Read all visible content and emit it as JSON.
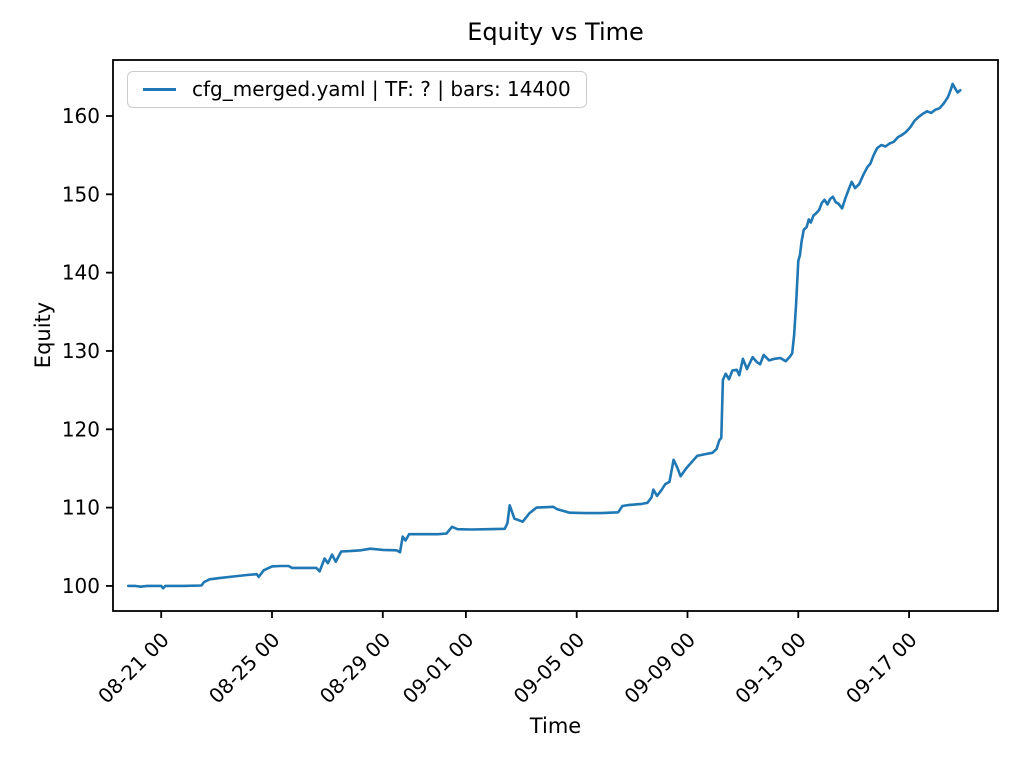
{
  "figure": {
    "background": "#ffffff"
  },
  "chart_data": {
    "type": "line",
    "title": "Equity vs Time",
    "xlabel": "Time",
    "ylabel": "Equity",
    "legend": [
      "cfg_merged.yaml | TF: ? | bars: 14400"
    ],
    "legend_position": "upper left",
    "line_color": "#1f77b4",
    "grid": false,
    "x_unit": "days since 08-21 00:00",
    "xlim": [
      -1.74,
      30.21
    ],
    "ylim": [
      96.8,
      167.15
    ],
    "y_ticks": [
      100,
      110,
      120,
      130,
      140,
      150,
      160
    ],
    "x_ticks": [
      {
        "day": 0,
        "label": "08-21 00"
      },
      {
        "day": 4,
        "label": "08-25 00"
      },
      {
        "day": 8,
        "label": "08-29 00"
      },
      {
        "day": 11,
        "label": "09-01 00"
      },
      {
        "day": 15,
        "label": "09-05 00"
      },
      {
        "day": 19,
        "label": "09-09 00"
      },
      {
        "day": 23,
        "label": "09-13 00"
      },
      {
        "day": 27,
        "label": "09-17 00"
      }
    ],
    "series": [
      {
        "name": "cfg_merged.yaml | TF: ? | bars: 14400",
        "points": [
          [
            -1.19,
            100.0
          ],
          [
            -0.95,
            100.0
          ],
          [
            -0.75,
            99.9
          ],
          [
            -0.5,
            100.0
          ],
          [
            0.0,
            100.0
          ],
          [
            0.07,
            99.7
          ],
          [
            0.15,
            100.0
          ],
          [
            0.8,
            100.0
          ],
          [
            1.45,
            100.05
          ],
          [
            1.55,
            100.5
          ],
          [
            1.75,
            100.85
          ],
          [
            2.1,
            101.0
          ],
          [
            2.6,
            101.2
          ],
          [
            3.1,
            101.4
          ],
          [
            3.45,
            101.5
          ],
          [
            3.52,
            101.15
          ],
          [
            3.7,
            102.0
          ],
          [
            4.0,
            102.5
          ],
          [
            4.3,
            102.55
          ],
          [
            4.6,
            102.55
          ],
          [
            4.72,
            102.3
          ],
          [
            5.2,
            102.3
          ],
          [
            5.6,
            102.3
          ],
          [
            5.72,
            101.85
          ],
          [
            5.9,
            103.5
          ],
          [
            6.02,
            102.9
          ],
          [
            6.17,
            104.0
          ],
          [
            6.3,
            103.1
          ],
          [
            6.5,
            104.4
          ],
          [
            6.8,
            104.45
          ],
          [
            7.2,
            104.55
          ],
          [
            7.55,
            104.75
          ],
          [
            8.0,
            104.6
          ],
          [
            8.5,
            104.55
          ],
          [
            8.62,
            104.3
          ],
          [
            8.72,
            106.3
          ],
          [
            8.82,
            105.8
          ],
          [
            8.95,
            106.6
          ],
          [
            9.5,
            106.6
          ],
          [
            10.0,
            106.6
          ],
          [
            10.3,
            106.7
          ],
          [
            10.5,
            107.55
          ],
          [
            10.7,
            107.25
          ],
          [
            11.2,
            107.2
          ],
          [
            11.8,
            107.25
          ],
          [
            12.4,
            107.3
          ],
          [
            12.5,
            108.0
          ],
          [
            12.58,
            110.3
          ],
          [
            12.75,
            108.6
          ],
          [
            13.05,
            108.2
          ],
          [
            13.3,
            109.3
          ],
          [
            13.55,
            110.0
          ],
          [
            13.9,
            110.05
          ],
          [
            14.15,
            110.1
          ],
          [
            14.3,
            109.8
          ],
          [
            14.75,
            109.35
          ],
          [
            15.3,
            109.3
          ],
          [
            15.9,
            109.3
          ],
          [
            16.5,
            109.4
          ],
          [
            16.65,
            110.2
          ],
          [
            16.9,
            110.35
          ],
          [
            17.3,
            110.45
          ],
          [
            17.55,
            110.6
          ],
          [
            17.7,
            111.3
          ],
          [
            17.77,
            112.3
          ],
          [
            17.9,
            111.5
          ],
          [
            18.05,
            112.2
          ],
          [
            18.2,
            113.0
          ],
          [
            18.35,
            113.3
          ],
          [
            18.5,
            116.1
          ],
          [
            18.62,
            115.2
          ],
          [
            18.75,
            114.0
          ],
          [
            18.95,
            115.0
          ],
          [
            19.15,
            115.8
          ],
          [
            19.35,
            116.6
          ],
          [
            19.6,
            116.8
          ],
          [
            19.9,
            117.0
          ],
          [
            20.05,
            117.5
          ],
          [
            20.15,
            118.6
          ],
          [
            20.22,
            118.9
          ],
          [
            20.28,
            126.3
          ],
          [
            20.38,
            127.1
          ],
          [
            20.5,
            126.4
          ],
          [
            20.62,
            127.5
          ],
          [
            20.78,
            127.6
          ],
          [
            20.87,
            126.9
          ],
          [
            21.0,
            129.0
          ],
          [
            21.15,
            127.7
          ],
          [
            21.35,
            129.2
          ],
          [
            21.5,
            128.6
          ],
          [
            21.62,
            128.3
          ],
          [
            21.75,
            129.5
          ],
          [
            21.95,
            128.8
          ],
          [
            22.15,
            129.0
          ],
          [
            22.35,
            129.1
          ],
          [
            22.55,
            128.7
          ],
          [
            22.7,
            129.3
          ],
          [
            22.78,
            129.7
          ],
          [
            22.85,
            132.0
          ],
          [
            22.92,
            136.0
          ],
          [
            23.0,
            141.5
          ],
          [
            23.06,
            142.2
          ],
          [
            23.12,
            144.0
          ],
          [
            23.2,
            145.5
          ],
          [
            23.3,
            145.8
          ],
          [
            23.38,
            146.8
          ],
          [
            23.45,
            146.4
          ],
          [
            23.55,
            147.3
          ],
          [
            23.65,
            147.6
          ],
          [
            23.75,
            148.0
          ],
          [
            23.85,
            148.9
          ],
          [
            23.95,
            149.3
          ],
          [
            24.05,
            148.7
          ],
          [
            24.15,
            149.4
          ],
          [
            24.25,
            149.7
          ],
          [
            24.35,
            149.0
          ],
          [
            24.45,
            148.8
          ],
          [
            24.58,
            148.2
          ],
          [
            24.7,
            149.5
          ],
          [
            24.85,
            150.9
          ],
          [
            24.93,
            151.6
          ],
          [
            25.05,
            150.8
          ],
          [
            25.2,
            151.3
          ],
          [
            25.35,
            152.5
          ],
          [
            25.5,
            153.5
          ],
          [
            25.6,
            153.9
          ],
          [
            25.72,
            155.0
          ],
          [
            25.85,
            155.9
          ],
          [
            26.0,
            156.3
          ],
          [
            26.15,
            156.1
          ],
          [
            26.3,
            156.5
          ],
          [
            26.45,
            156.7
          ],
          [
            26.6,
            157.3
          ],
          [
            26.75,
            157.6
          ],
          [
            26.9,
            158.0
          ],
          [
            27.05,
            158.6
          ],
          [
            27.2,
            159.4
          ],
          [
            27.35,
            159.9
          ],
          [
            27.5,
            160.3
          ],
          [
            27.65,
            160.6
          ],
          [
            27.8,
            160.4
          ],
          [
            27.95,
            160.8
          ],
          [
            28.1,
            161.0
          ],
          [
            28.25,
            161.6
          ],
          [
            28.4,
            162.4
          ],
          [
            28.5,
            163.3
          ],
          [
            28.57,
            164.1
          ],
          [
            28.65,
            163.6
          ],
          [
            28.75,
            163.0
          ],
          [
            28.85,
            163.3
          ]
        ]
      }
    ]
  }
}
